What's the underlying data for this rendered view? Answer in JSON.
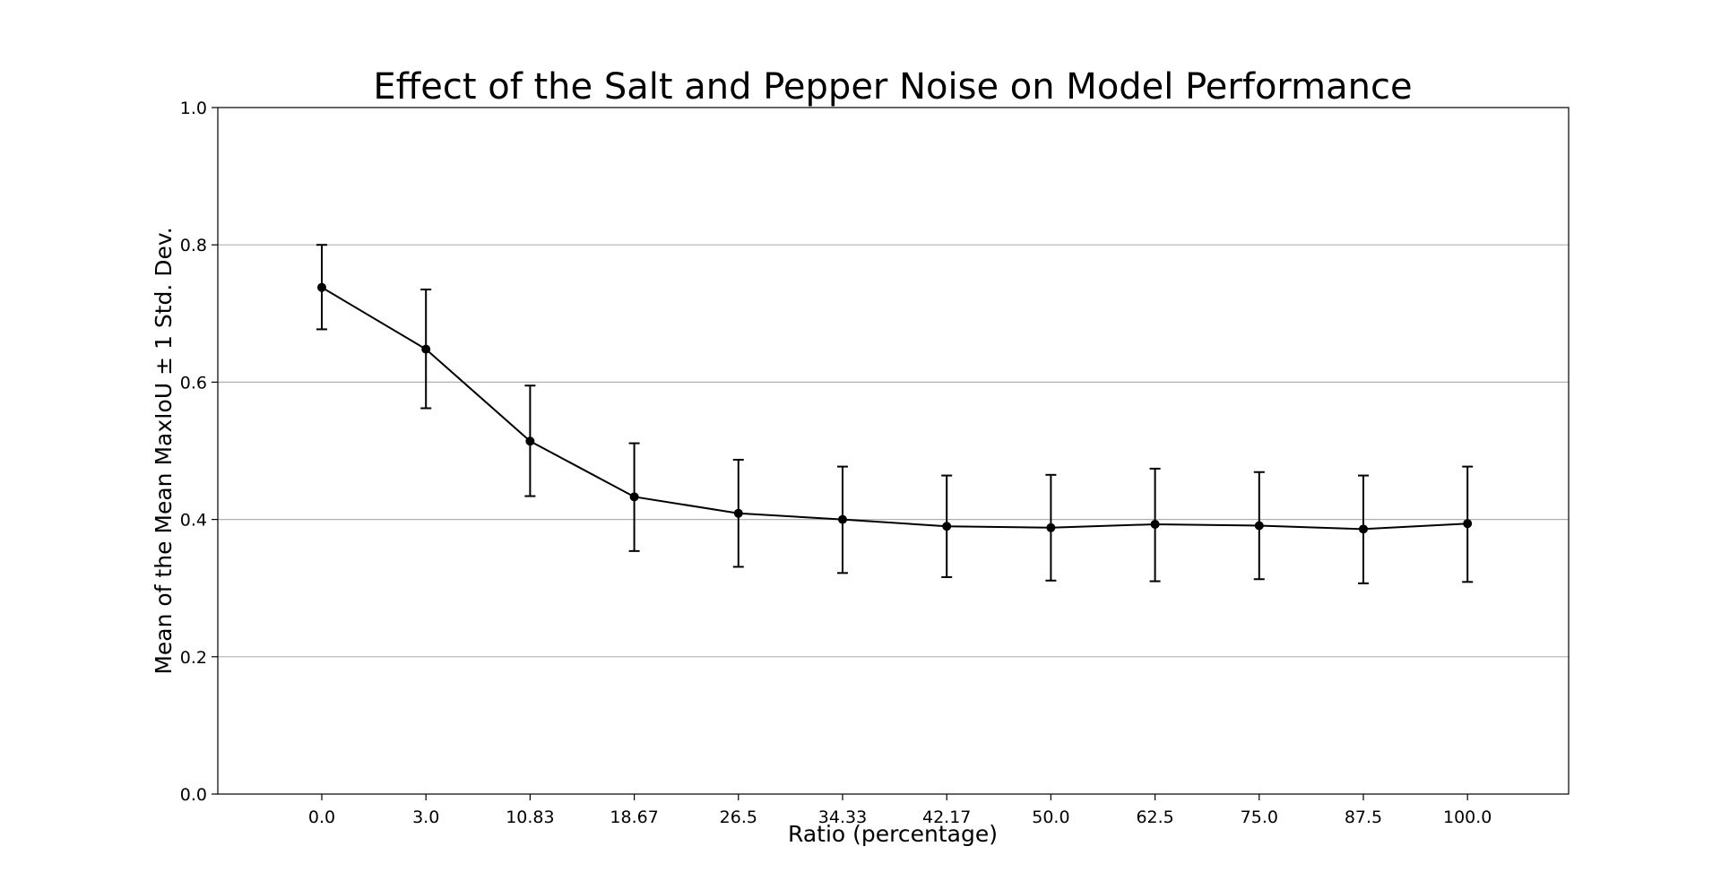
{
  "chart_data": {
    "type": "line",
    "title": "Effect of the Salt and Pepper Noise on Model Performance",
    "xlabel": "Ratio (percentage)",
    "ylabel": "Mean of the Mean MaxIoU ± 1 Std. Dev.",
    "categories": [
      "0.0",
      "3.0",
      "10.83",
      "18.67",
      "26.5",
      "34.33",
      "42.17",
      "50.0",
      "62.5",
      "75.0",
      "87.5",
      "100.0"
    ],
    "series": [
      {
        "values": [
          0.738,
          0.648,
          0.514,
          0.433,
          0.409,
          0.4,
          0.39,
          0.388,
          0.393,
          0.391,
          0.386,
          0.394
        ],
        "error_low": [
          0.677,
          0.562,
          0.434,
          0.354,
          0.331,
          0.322,
          0.316,
          0.311,
          0.31,
          0.313,
          0.307,
          0.309
        ],
        "error_high": [
          0.8,
          0.735,
          0.595,
          0.511,
          0.487,
          0.477,
          0.464,
          0.465,
          0.474,
          0.469,
          0.464,
          0.477
        ],
        "color": "#000000"
      }
    ],
    "yticks": [
      "0.0",
      "0.2",
      "0.4",
      "0.6",
      "0.8",
      "1.0"
    ],
    "ylim": [
      0,
      1
    ],
    "grid": "horizontal",
    "gridColor": "#b0b0b0"
  }
}
